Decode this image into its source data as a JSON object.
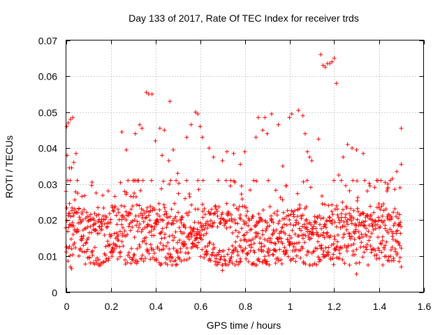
{
  "chart_data": {
    "type": "scatter",
    "title": "Day 133 of 2017, Rate Of TEC Index for receiver trds",
    "xlabel": "GPS time / hours",
    "ylabel": "ROTI / TECUs",
    "xlim": [
      0,
      1.6
    ],
    "ylim": [
      0,
      0.07
    ],
    "xticks": [
      0,
      0.2,
      0.4,
      0.6,
      0.8,
      1,
      1.2,
      1.4,
      1.6
    ],
    "xtick_labels": [
      "0",
      "0.2",
      "0.4",
      "0.6",
      "0.8",
      "1",
      "1.2",
      "1.4",
      "1.6"
    ],
    "yticks": [
      0,
      0.01,
      0.02,
      0.03,
      0.04,
      0.05,
      0.06,
      0.07
    ],
    "ytick_labels": [
      "0",
      "0.01",
      "0.02",
      "0.03",
      "0.04",
      "0.05",
      "0.06",
      "0.07"
    ],
    "grid": true,
    "marker": "+",
    "color": "#ff0000",
    "series": [
      {
        "name": "ROTI",
        "x_range": [
          0,
          1.5
        ],
        "notes": "dense band of values mostly between 0.008 and 0.028 TECUs across the full time range, with excursions listed in highlights",
        "band": {
          "low": 0.008,
          "high": 0.027
        },
        "highlights": [
          [
            0.0,
            0.028
          ],
          [
            0.003,
            0.046
          ],
          [
            0.01,
            0.047
          ],
          [
            0.02,
            0.048
          ],
          [
            0.03,
            0.0485
          ],
          [
            0.005,
            0.038
          ],
          [
            0.015,
            0.0345
          ],
          [
            0.025,
            0.0345
          ],
          [
            0.035,
            0.036
          ],
          [
            0.045,
            0.0385
          ],
          [
            0.02,
            0.007
          ],
          [
            0.025,
            0.0065
          ],
          [
            0.3,
            0.0095
          ],
          [
            0.31,
            0.044
          ],
          [
            0.25,
            0.0445
          ],
          [
            0.27,
            0.0395
          ],
          [
            0.33,
            0.0465
          ],
          [
            0.34,
            0.0455
          ],
          [
            0.36,
            0.0555
          ],
          [
            0.37,
            0.055
          ],
          [
            0.385,
            0.055
          ],
          [
            0.42,
            0.0455
          ],
          [
            0.44,
            0.045
          ],
          [
            0.465,
            0.053
          ],
          [
            0.4,
            0.042
          ],
          [
            0.43,
            0.038
          ],
          [
            0.46,
            0.0365
          ],
          [
            0.48,
            0.0395
          ],
          [
            0.5,
            0.033
          ],
          [
            0.54,
            0.043
          ],
          [
            0.56,
            0.0465
          ],
          [
            0.58,
            0.05
          ],
          [
            0.59,
            0.0495
          ],
          [
            0.6,
            0.046
          ],
          [
            0.61,
            0.043
          ],
          [
            0.64,
            0.04
          ],
          [
            0.66,
            0.0375
          ],
          [
            0.7,
            0.0365
          ],
          [
            0.72,
            0.039
          ],
          [
            0.75,
            0.0385
          ],
          [
            0.7,
            0.006
          ],
          [
            0.78,
            0.0355
          ],
          [
            0.8,
            0.039
          ],
          [
            0.85,
            0.043
          ],
          [
            0.86,
            0.0485
          ],
          [
            0.88,
            0.045
          ],
          [
            0.89,
            0.0485
          ],
          [
            0.9,
            0.044
          ],
          [
            0.92,
            0.0495
          ],
          [
            0.95,
            0.0465
          ],
          [
            0.97,
            0.035
          ],
          [
            1.0,
            0.0485
          ],
          [
            1.01,
            0.0495
          ],
          [
            1.04,
            0.0505
          ],
          [
            1.06,
            0.049
          ],
          [
            1.07,
            0.044
          ],
          [
            1.08,
            0.039
          ],
          [
            1.09,
            0.0375
          ],
          [
            1.1,
            0.0365
          ],
          [
            1.13,
            0.0425
          ],
          [
            1.14,
            0.066
          ],
          [
            1.15,
            0.063
          ],
          [
            1.16,
            0.0625
          ],
          [
            1.17,
            0.0635
          ],
          [
            1.18,
            0.0635
          ],
          [
            1.19,
            0.064
          ],
          [
            1.2,
            0.065
          ],
          [
            1.21,
            0.058
          ],
          [
            1.22,
            0.0325
          ],
          [
            1.24,
            0.0375
          ],
          [
            1.26,
            0.041
          ],
          [
            1.28,
            0.04
          ],
          [
            1.3,
            0.0395
          ],
          [
            1.3,
            0.005
          ],
          [
            1.33,
            0.0385
          ],
          [
            1.36,
            0.0295
          ],
          [
            1.4,
            0.0245
          ],
          [
            1.42,
            0.0245
          ],
          [
            1.44,
            0.03
          ],
          [
            1.46,
            0.0315
          ],
          [
            1.48,
            0.0335
          ],
          [
            1.5,
            0.0455
          ],
          [
            1.5,
            0.0355
          ],
          [
            1.5,
            0.007
          ],
          [
            1.49,
            0.0085
          ]
        ]
      }
    ]
  }
}
